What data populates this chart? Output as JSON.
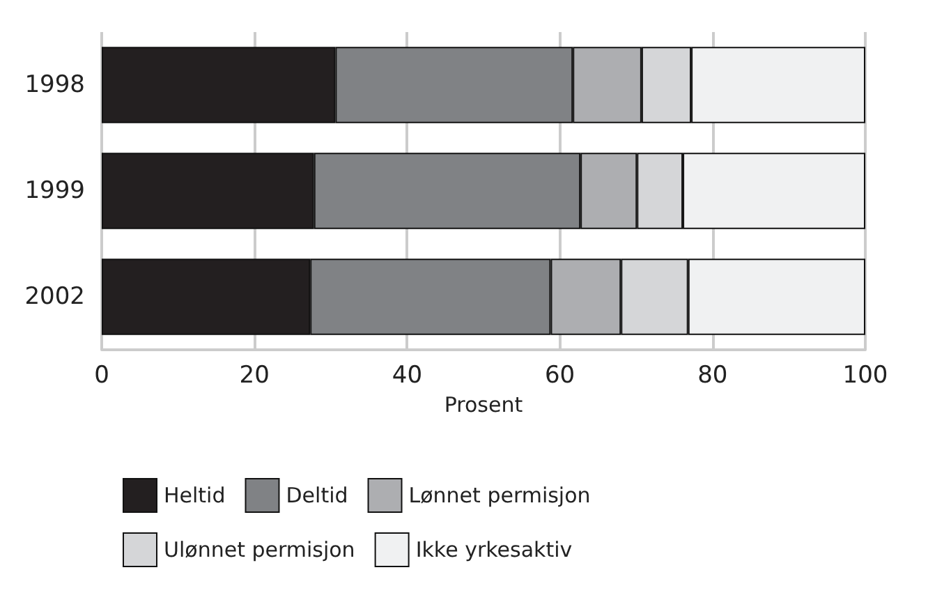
{
  "chart_data": {
    "type": "bar",
    "orientation": "horizontal",
    "stacked": true,
    "categories": [
      "1998",
      "1999",
      "2002"
    ],
    "series": [
      {
        "name": "Heltid",
        "color": "#231f20",
        "values": [
          30.6,
          27.8,
          27.3
        ]
      },
      {
        "name": "Deltid",
        "color": "#808285",
        "values": [
          31.1,
          34.9,
          31.5
        ]
      },
      {
        "name": "Lønnet permisjon",
        "color": "#adaeb1",
        "values": [
          9.0,
          7.4,
          9.2
        ]
      },
      {
        "name": "Ulønnet permisjon",
        "color": "#d5d6d8",
        "values": [
          6.5,
          6.0,
          8.8
        ]
      },
      {
        "name": "Ikke yrkesaktiv",
        "color": "#f0f1f2",
        "values": [
          22.8,
          23.9,
          23.2
        ]
      }
    ],
    "xlabel": "Prosent",
    "xlim": [
      0,
      100
    ],
    "xticks": [
      0,
      20,
      40,
      60,
      80,
      100
    ],
    "grid": "x",
    "legend": "bottom"
  }
}
